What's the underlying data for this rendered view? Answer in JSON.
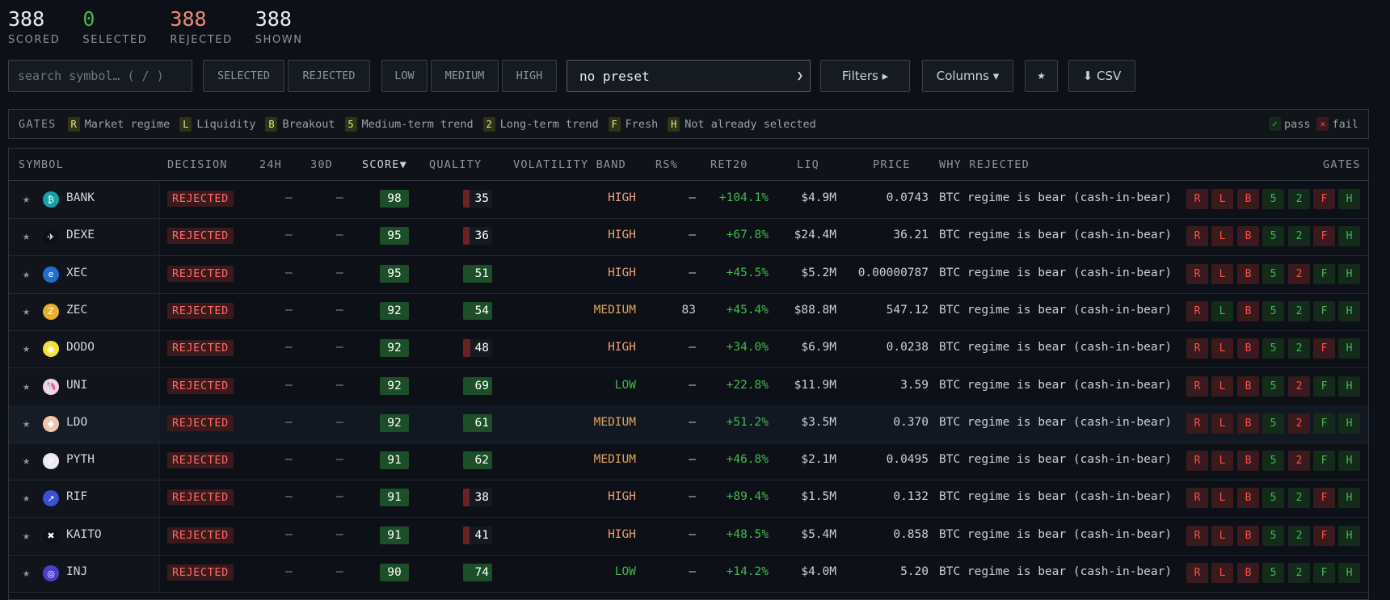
{
  "stats": [
    {
      "num": "388",
      "label": "SCORED",
      "tone": "white"
    },
    {
      "num": "0",
      "label": "SELECTED",
      "tone": "green"
    },
    {
      "num": "388",
      "label": "REJECTED",
      "tone": "red"
    },
    {
      "num": "388",
      "label": "SHOWN",
      "tone": "white"
    }
  ],
  "toolbar": {
    "search_placeholder": "search symbol…  ( / )",
    "selected": "SELECTED",
    "rejected": "REJECTED",
    "low": "LOW",
    "medium": "MEDIUM",
    "high": "HIGH",
    "preset": "no preset",
    "preset_options": [
      "no preset"
    ],
    "filters": "Filters ▸",
    "columns": "Columns ▾",
    "star": "★",
    "csv": "⬇ CSV"
  },
  "gates_legend": {
    "title": "GATES",
    "items": [
      {
        "key": "R",
        "label": "Market regime"
      },
      {
        "key": "L",
        "label": "Liquidity"
      },
      {
        "key": "B",
        "label": "Breakout"
      },
      {
        "key": "5",
        "label": "Medium-term trend"
      },
      {
        "key": "2",
        "label": "Long-term trend"
      },
      {
        "key": "F",
        "label": "Fresh"
      },
      {
        "key": "H",
        "label": "Not already selected"
      }
    ],
    "pass": "pass",
    "fail": "fail",
    "pass_icon": "✓",
    "fail_icon": "✕"
  },
  "table": {
    "headers": {
      "symbol": "SYMBOL",
      "decision": "DECISION",
      "h24": "24H",
      "d30": "30D",
      "score": "SCORE▼",
      "quality": "QUALITY",
      "band": "VOLATILITY BAND",
      "rs": "RS%",
      "ret20": "RET20",
      "liq": "LIQ",
      "price": "PRICE",
      "why": "WHY REJECTED",
      "gates": "GATES"
    },
    "gate_keys": [
      "R",
      "L",
      "B",
      "5",
      "2",
      "F",
      "H"
    ],
    "rows": [
      {
        "symbol": "BANK",
        "coin_color": "#14a3a8",
        "coin_glyph": "₿",
        "decision": "REJECTED",
        "h24": "—",
        "d30": "—",
        "score": "98",
        "quality": "35",
        "quality_fill": 0.35,
        "band": "HIGH",
        "rs": "—",
        "ret20": "+104.1%",
        "liq": "$4.9M",
        "price": "0.0743",
        "why": "BTC regime is bear (cash-in-bear)",
        "gates": [
          "f",
          "f",
          "f",
          "p",
          "p",
          "f",
          "p"
        ]
      },
      {
        "symbol": "DEXE",
        "coin_color": "#0d1117",
        "coin_glyph": "✈",
        "decision": "REJECTED",
        "h24": "—",
        "d30": "—",
        "score": "95",
        "quality": "36",
        "quality_fill": 0.36,
        "band": "HIGH",
        "rs": "—",
        "ret20": "+67.8%",
        "liq": "$24.4M",
        "price": "36.21",
        "why": "BTC regime is bear (cash-in-bear)",
        "gates": [
          "f",
          "f",
          "f",
          "p",
          "p",
          "f",
          "p"
        ]
      },
      {
        "symbol": "XEC",
        "coin_color": "#1f6fd1",
        "coin_glyph": "e",
        "decision": "REJECTED",
        "h24": "—",
        "d30": "—",
        "score": "95",
        "quality": "51",
        "quality_fill": 0.51,
        "band": "HIGH",
        "rs": "—",
        "ret20": "+45.5%",
        "liq": "$5.2M",
        "price": "0.00000787",
        "why": "BTC regime is bear (cash-in-bear)",
        "gates": [
          "f",
          "f",
          "f",
          "p",
          "f",
          "p",
          "p"
        ]
      },
      {
        "symbol": "ZEC",
        "coin_color": "#e8b030",
        "coin_glyph": "Z",
        "decision": "REJECTED",
        "h24": "—",
        "d30": "—",
        "score": "92",
        "quality": "54",
        "quality_fill": 0.54,
        "band": "MEDIUM",
        "rs": "83",
        "ret20": "+45.4%",
        "liq": "$88.8M",
        "price": "547.12",
        "why": "BTC regime is bear (cash-in-bear)",
        "gates": [
          "f",
          "p",
          "f",
          "p",
          "p",
          "p",
          "p"
        ]
      },
      {
        "symbol": "DODO",
        "coin_color": "#f5e03a",
        "coin_glyph": "◉",
        "decision": "REJECTED",
        "h24": "—",
        "d30": "—",
        "score": "92",
        "quality": "48",
        "quality_fill": 0.48,
        "band": "HIGH",
        "rs": "—",
        "ret20": "+34.0%",
        "liq": "$6.9M",
        "price": "0.0238",
        "why": "BTC regime is bear (cash-in-bear)",
        "gates": [
          "f",
          "f",
          "f",
          "p",
          "p",
          "f",
          "p"
        ]
      },
      {
        "symbol": "UNI",
        "coin_color": "#f4d5e6",
        "coin_glyph": "🦄",
        "decision": "REJECTED",
        "h24": "—",
        "d30": "—",
        "score": "92",
        "quality": "69",
        "quality_fill": 0.69,
        "band": "LOW",
        "rs": "—",
        "ret20": "+22.8%",
        "liq": "$11.9M",
        "price": "3.59",
        "why": "BTC regime is bear (cash-in-bear)",
        "gates": [
          "f",
          "f",
          "f",
          "p",
          "f",
          "p",
          "p"
        ]
      },
      {
        "symbol": "LDO",
        "coin_color": "#f2c6ad",
        "coin_glyph": "◆",
        "decision": "REJECTED",
        "h24": "—",
        "d30": "—",
        "score": "92",
        "quality": "61",
        "quality_fill": 0.61,
        "band": "MEDIUM",
        "rs": "—",
        "ret20": "+51.2%",
        "liq": "$3.5M",
        "price": "0.370",
        "why": "BTC regime is bear (cash-in-bear)",
        "gates": [
          "f",
          "f",
          "f",
          "p",
          "f",
          "p",
          "p"
        ]
      },
      {
        "symbol": "PYTH",
        "coin_color": "#efe8f7",
        "coin_glyph": "P",
        "decision": "REJECTED",
        "h24": "—",
        "d30": "—",
        "score": "91",
        "quality": "62",
        "quality_fill": 0.62,
        "band": "MEDIUM",
        "rs": "—",
        "ret20": "+46.8%",
        "liq": "$2.1M",
        "price": "0.0495",
        "why": "BTC regime is bear (cash-in-bear)",
        "gates": [
          "f",
          "f",
          "f",
          "p",
          "f",
          "p",
          "p"
        ]
      },
      {
        "symbol": "RIF",
        "coin_color": "#3d4fd6",
        "coin_glyph": "↗",
        "decision": "REJECTED",
        "h24": "—",
        "d30": "—",
        "score": "91",
        "quality": "38",
        "quality_fill": 0.38,
        "band": "HIGH",
        "rs": "—",
        "ret20": "+89.4%",
        "liq": "$1.5M",
        "price": "0.132",
        "why": "BTC regime is bear (cash-in-bear)",
        "gates": [
          "f",
          "f",
          "f",
          "p",
          "p",
          "f",
          "p"
        ]
      },
      {
        "symbol": "KAITO",
        "coin_color": "#0d1117",
        "coin_glyph": "✖",
        "decision": "REJECTED",
        "h24": "—",
        "d30": "—",
        "score": "91",
        "quality": "41",
        "quality_fill": 0.41,
        "band": "HIGH",
        "rs": "—",
        "ret20": "+48.5%",
        "liq": "$5.4M",
        "price": "0.858",
        "why": "BTC regime is bear (cash-in-bear)",
        "gates": [
          "f",
          "f",
          "f",
          "p",
          "p",
          "f",
          "p"
        ]
      },
      {
        "symbol": "INJ",
        "coin_color": "#4b3fd0",
        "coin_glyph": "◎",
        "decision": "REJECTED",
        "h24": "—",
        "d30": "—",
        "score": "90",
        "quality": "74",
        "quality_fill": 0.74,
        "band": "LOW",
        "rs": "—",
        "ret20": "+14.2%",
        "liq": "$4.0M",
        "price": "5.20",
        "why": "BTC regime is bear (cash-in-bear)",
        "gates": [
          "f",
          "f",
          "f",
          "p",
          "p",
          "p",
          "p"
        ]
      }
    ]
  },
  "colors": {
    "band_HIGH": "#f0a07a",
    "band_MEDIUM": "#e0a35a",
    "band_LOW": "#3fb950",
    "quality_good": "#1c4f29",
    "quality_bad": "#6b2222"
  }
}
